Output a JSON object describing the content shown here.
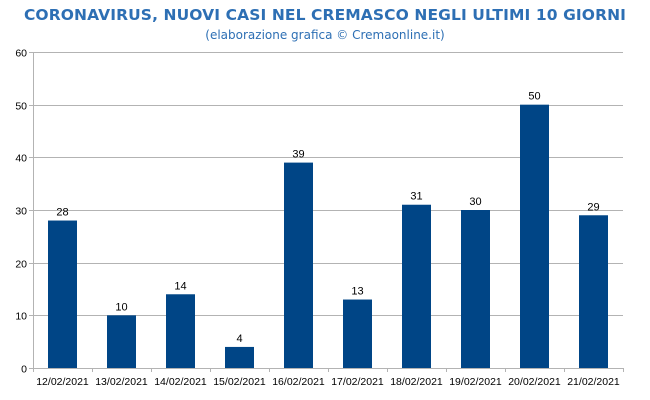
{
  "chart_data": {
    "type": "bar",
    "title": "CORONAVIRUS, NUOVI CASI NEL CREMASCO NEGLI ULTIMI 10 GIORNI",
    "subtitle": "(elaborazione grafica © Cremaonline.it)",
    "categories": [
      "12/02/2021",
      "13/02/2021",
      "14/02/2021",
      "15/02/2021",
      "16/02/2021",
      "17/02/2021",
      "18/02/2021",
      "19/02/2021",
      "20/02/2021",
      "21/02/2021"
    ],
    "values": [
      28,
      10,
      14,
      4,
      39,
      13,
      31,
      30,
      50,
      29
    ],
    "ylim": [
      0,
      60
    ],
    "yticks": [
      0,
      10,
      20,
      30,
      40,
      50,
      60
    ],
    "grid": true,
    "bar_color": "#004586",
    "grid_color": "#b3b3b3",
    "title_color": "#2d6fb4"
  }
}
